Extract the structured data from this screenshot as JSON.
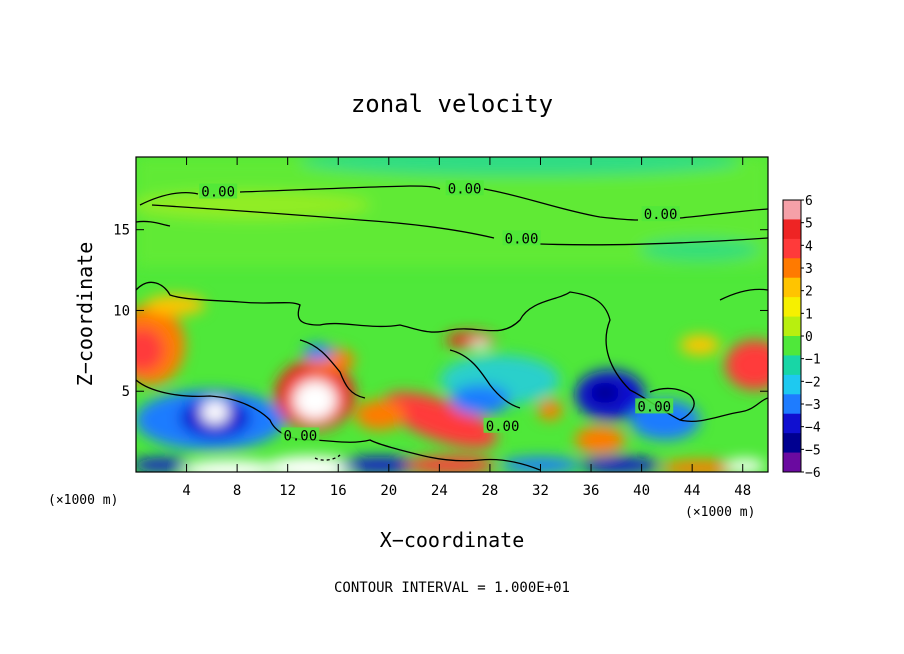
{
  "chart_data": {
    "type": "heatmap",
    "title": "zonal velocity",
    "xlabel": "X−coordinate",
    "ylabel": "Z−coordinate",
    "x_unit": "(×1000 m)",
    "x_ticks": [
      4,
      8,
      12,
      16,
      20,
      24,
      28,
      32,
      36,
      40,
      44,
      48
    ],
    "y_ticks": [
      5,
      10,
      15
    ],
    "xlim": [
      0,
      50
    ],
    "ylim": [
      0,
      19.5
    ],
    "colorbar": {
      "ticks": [
        6,
        5,
        4,
        3,
        2,
        1,
        0,
        -1,
        -2,
        -3,
        -4,
        -5,
        -6
      ],
      "labels": [
        "6",
        "5",
        "4",
        "3",
        "2",
        "1",
        "0",
        "−1",
        "−2",
        "−3",
        "−4",
        "−5",
        "−6"
      ],
      "colors": [
        "#f5a0a8",
        "#ee2424",
        "#ff3a3a",
        "#ff7a00",
        "#ffc400",
        "#f6f000",
        "#b8ef0f",
        "#4fe83a",
        "#18d6a6",
        "#1ec9f0",
        "#1e7cff",
        "#1010d0",
        "#000090",
        "#6a0aa0"
      ]
    },
    "background_value": 0,
    "features": [
      {
        "x": 1.5,
        "z": 8.0,
        "value": 5
      },
      {
        "x": 6.5,
        "z": 3.5,
        "value": -4
      },
      {
        "x": 14.0,
        "z": 4.2,
        "value": 6
      },
      {
        "x": 24.0,
        "z": 3.0,
        "value": 4
      },
      {
        "x": 26.5,
        "z": 8.0,
        "value": 5
      },
      {
        "x": 37.0,
        "z": 5.0,
        "value": -4
      },
      {
        "x": 37.0,
        "z": 2.0,
        "value": 4
      },
      {
        "x": 48.5,
        "z": 6.5,
        "value": 5
      },
      {
        "x": 31.5,
        "z": 6.0,
        "value": -2
      }
    ],
    "contour_labels": [
      {
        "text": "0.00",
        "x": 6.5,
        "z": 17.3
      },
      {
        "text": "0.00",
        "x": 26.0,
        "z": 17.5
      },
      {
        "text": "0.00",
        "x": 41.5,
        "z": 15.9
      },
      {
        "text": "0.00",
        "x": 30.5,
        "z": 14.4
      },
      {
        "text": "0.00",
        "x": 13.0,
        "z": 2.2
      },
      {
        "text": "0.00",
        "x": 29.0,
        "z": 2.8
      },
      {
        "text": "0.00",
        "x": 41.0,
        "z": 4.0
      }
    ]
  },
  "footer": "CONTOUR INTERVAL = 1.000E+01"
}
